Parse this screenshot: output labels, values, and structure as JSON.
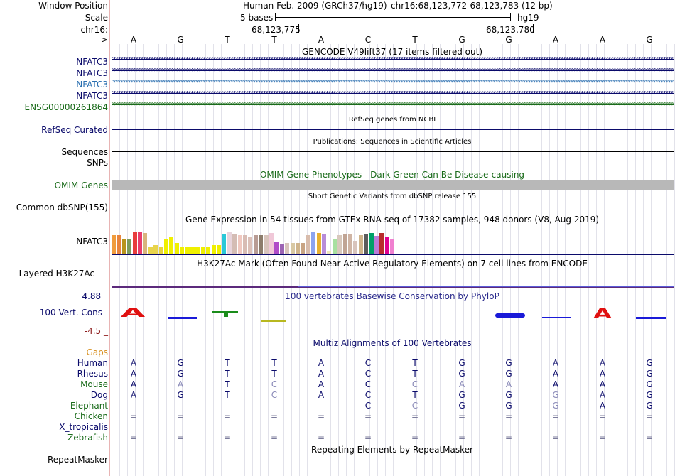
{
  "header": {
    "window_position_label": "Window Position",
    "assembly_text": "Human Feb. 2009 (GRCh37/hg19)",
    "position_text": "chr16:68,123,772-68,123,783 (12 bp)",
    "scale_label": "Scale",
    "scale_value": "5 bases",
    "scale_assembly": "hg19",
    "chrom_label": "chr16:",
    "coord_1": "68,123,775",
    "coord_2": "68,123,780",
    "strand_label": "--->"
  },
  "sequence": [
    "A",
    "G",
    "T",
    "T",
    "A",
    "C",
    "T",
    "G",
    "G",
    "A",
    "A",
    "G"
  ],
  "gencode": {
    "title": "GENCODE V49lift37 (17 items filtered out)",
    "tracks": [
      {
        "label": "NFATC3",
        "color": "#0b0b6b"
      },
      {
        "label": "NFATC3",
        "color": "#0b0b6b"
      },
      {
        "label": "NFATC3",
        "color": "#2a6fb0"
      },
      {
        "label": "NFATC3",
        "color": "#0b0b6b"
      },
      {
        "label": "ENSG00000261864",
        "color": "#1a6b1a"
      }
    ]
  },
  "refseq": {
    "title": "RefSeq genes from NCBI",
    "label": "RefSeq Curated"
  },
  "publications": {
    "title": "Publications: Sequences in Scientific Articles",
    "label": "Sequences"
  },
  "snps_label": "SNPs",
  "omim": {
    "title": "OMIM Gene Phenotypes - Dark Green Can Be Disease-causing",
    "label": "OMIM Genes"
  },
  "dbsnp": {
    "title": "Short Genetic Variants from dbSNP release 155",
    "label": "Common dbSNP(155)"
  },
  "gtex": {
    "title": "Gene Expression in 54 tissues from GTEx RNA-seq of 17382 samples, 948 donors (V8, Aug 2019)",
    "label": "NFATC3",
    "bars": [
      {
        "c": "#f09c3c",
        "h": 0.85
      },
      {
        "c": "#e8843c",
        "h": 0.85
      },
      {
        "c": "#b8941c",
        "h": 0.7
      },
      {
        "c": "#7c9c5c",
        "h": 0.7
      },
      {
        "c": "#e83c3c",
        "h": 1.0
      },
      {
        "c": "#e83c6c",
        "h": 1.0
      },
      {
        "c": "#d8b47c",
        "h": 0.95
      },
      {
        "c": "#e8d44c",
        "h": 0.35
      },
      {
        "c": "#e8d44c",
        "h": 0.4
      },
      {
        "c": "#e8d43c",
        "h": 0.3
      },
      {
        "c": "#f0f000",
        "h": 0.7
      },
      {
        "c": "#f0f000",
        "h": 0.75
      },
      {
        "c": "#f0f000",
        "h": 0.5
      },
      {
        "c": "#f0f000",
        "h": 0.3
      },
      {
        "c": "#f0f000",
        "h": 0.3
      },
      {
        "c": "#f0f000",
        "h": 0.3
      },
      {
        "c": "#f0f000",
        "h": 0.3
      },
      {
        "c": "#f0f000",
        "h": 0.3
      },
      {
        "c": "#f0f000",
        "h": 0.3
      },
      {
        "c": "#f0f000",
        "h": 0.4
      },
      {
        "c": "#f0f000",
        "h": 0.4
      },
      {
        "c": "#2ac8d8",
        "h": 0.9
      },
      {
        "c": "#e8d4dc",
        "h": 1.0
      },
      {
        "c": "#d4bcb4",
        "h": 0.9
      },
      {
        "c": "#f0c8c0",
        "h": 0.85
      },
      {
        "c": "#d8bcb4",
        "h": 0.85
      },
      {
        "c": "#dcc0b8",
        "h": 0.75
      },
      {
        "c": "#b89c94",
        "h": 0.85
      },
      {
        "c": "#8c7c6c",
        "h": 0.85
      },
      {
        "c": "#d8c4bc",
        "h": 0.85
      },
      {
        "c": "#f0c8d8",
        "h": 0.95
      },
      {
        "c": "#b04cc8",
        "h": 0.55
      },
      {
        "c": "#9c64b4",
        "h": 0.45
      },
      {
        "c": "#d8c4bc",
        "h": 0.5
      },
      {
        "c": "#d8c8a4",
        "h": 0.5
      },
      {
        "c": "#cfb48c",
        "h": 0.5
      },
      {
        "c": "#c8a484",
        "h": 0.5
      },
      {
        "c": "#d8bcac",
        "h": 0.85
      },
      {
        "c": "#8ca4f0",
        "h": 1.0
      },
      {
        "c": "#e8b030",
        "h": 0.95
      },
      {
        "c": "#b88cd8",
        "h": 0.9
      },
      {
        "c": "#f0e8b8",
        "h": 0.15
      },
      {
        "c": "#a8e0a0",
        "h": 0.7
      },
      {
        "c": "#d8c8bc",
        "h": 0.85
      },
      {
        "c": "#c0a494",
        "h": 0.9
      },
      {
        "c": "#cfb4a4",
        "h": 0.9
      },
      {
        "c": "#d8c4bc",
        "h": 0.6
      },
      {
        "c": "#cfb48c",
        "h": 0.85
      },
      {
        "c": "#5c5c5c",
        "h": 0.9
      },
      {
        "c": "#00a068",
        "h": 0.95
      },
      {
        "c": "#bc7cd8",
        "h": 0.8
      },
      {
        "c": "#b82c2c",
        "h": 0.95
      },
      {
        "c": "#e00090",
        "h": 0.75
      },
      {
        "c": "#f080d0",
        "h": 0.7
      }
    ]
  },
  "h3k27ac": {
    "title": "H3K27Ac Mark (Often Found Near Active Regulatory Elements) on 7 cell lines from ENCODE",
    "label": "Layered H3K27Ac"
  },
  "phylop": {
    "title": "100 vertebrates Basewise Conservation by PhyloP",
    "label": "100 Vert. Cons",
    "max": "4.88 _",
    "min": "-4.5 _"
  },
  "multiz": {
    "title": "Multiz Alignments of 100 Vertebrates",
    "gaps_label": "Gaps",
    "species": [
      {
        "name": "Human",
        "color": "#0b0b6b",
        "bases": [
          "A",
          "G",
          "T",
          "T",
          "A",
          "C",
          "T",
          "G",
          "G",
          "A",
          "A",
          "G"
        ]
      },
      {
        "name": "Rhesus",
        "color": "#0b0b6b",
        "bases": [
          "A",
          "G",
          "T",
          "T",
          "A",
          "C",
          "T",
          "G",
          "G",
          "A",
          "A",
          "G"
        ]
      },
      {
        "name": "Mouse",
        "color": "#1a6b1a",
        "bases": [
          "A",
          "A",
          "T",
          "C",
          "A",
          "C",
          "C",
          "A",
          "A",
          "A",
          "A",
          "G"
        ]
      },
      {
        "name": "Dog",
        "color": "#0b0b6b",
        "bases": [
          "A",
          "G",
          "T",
          "C",
          "A",
          "C",
          "T",
          "G",
          "G",
          "G",
          "A",
          "G"
        ]
      },
      {
        "name": "Elephant",
        "color": "#1a6b1a",
        "bases": [
          "-",
          "-",
          "-",
          "-",
          "-",
          "C",
          "C",
          "G",
          "G",
          "G",
          "A",
          "G"
        ]
      },
      {
        "name": "Chicken",
        "color": "#1a6b1a",
        "bases": [
          "=",
          "=",
          "=",
          "=",
          "=",
          "=",
          "=",
          "=",
          "=",
          "=",
          "=",
          "="
        ]
      },
      {
        "name": "X_tropicalis",
        "color": "#0b0b6b",
        "bases": [
          "",
          "",
          "",
          "",
          "",
          "",
          "",
          "",
          "",
          "",
          "",
          ""
        ]
      },
      {
        "name": "Zebrafish",
        "color": "#1a6b1a",
        "bases": [
          "=",
          "=",
          "=",
          "=",
          "=",
          "=",
          "=",
          "=",
          "=",
          "=",
          "=",
          "="
        ]
      }
    ]
  },
  "repeatmasker": {
    "title": "Repeating Elements by RepeatMasker",
    "label": "RepeatMasker"
  }
}
